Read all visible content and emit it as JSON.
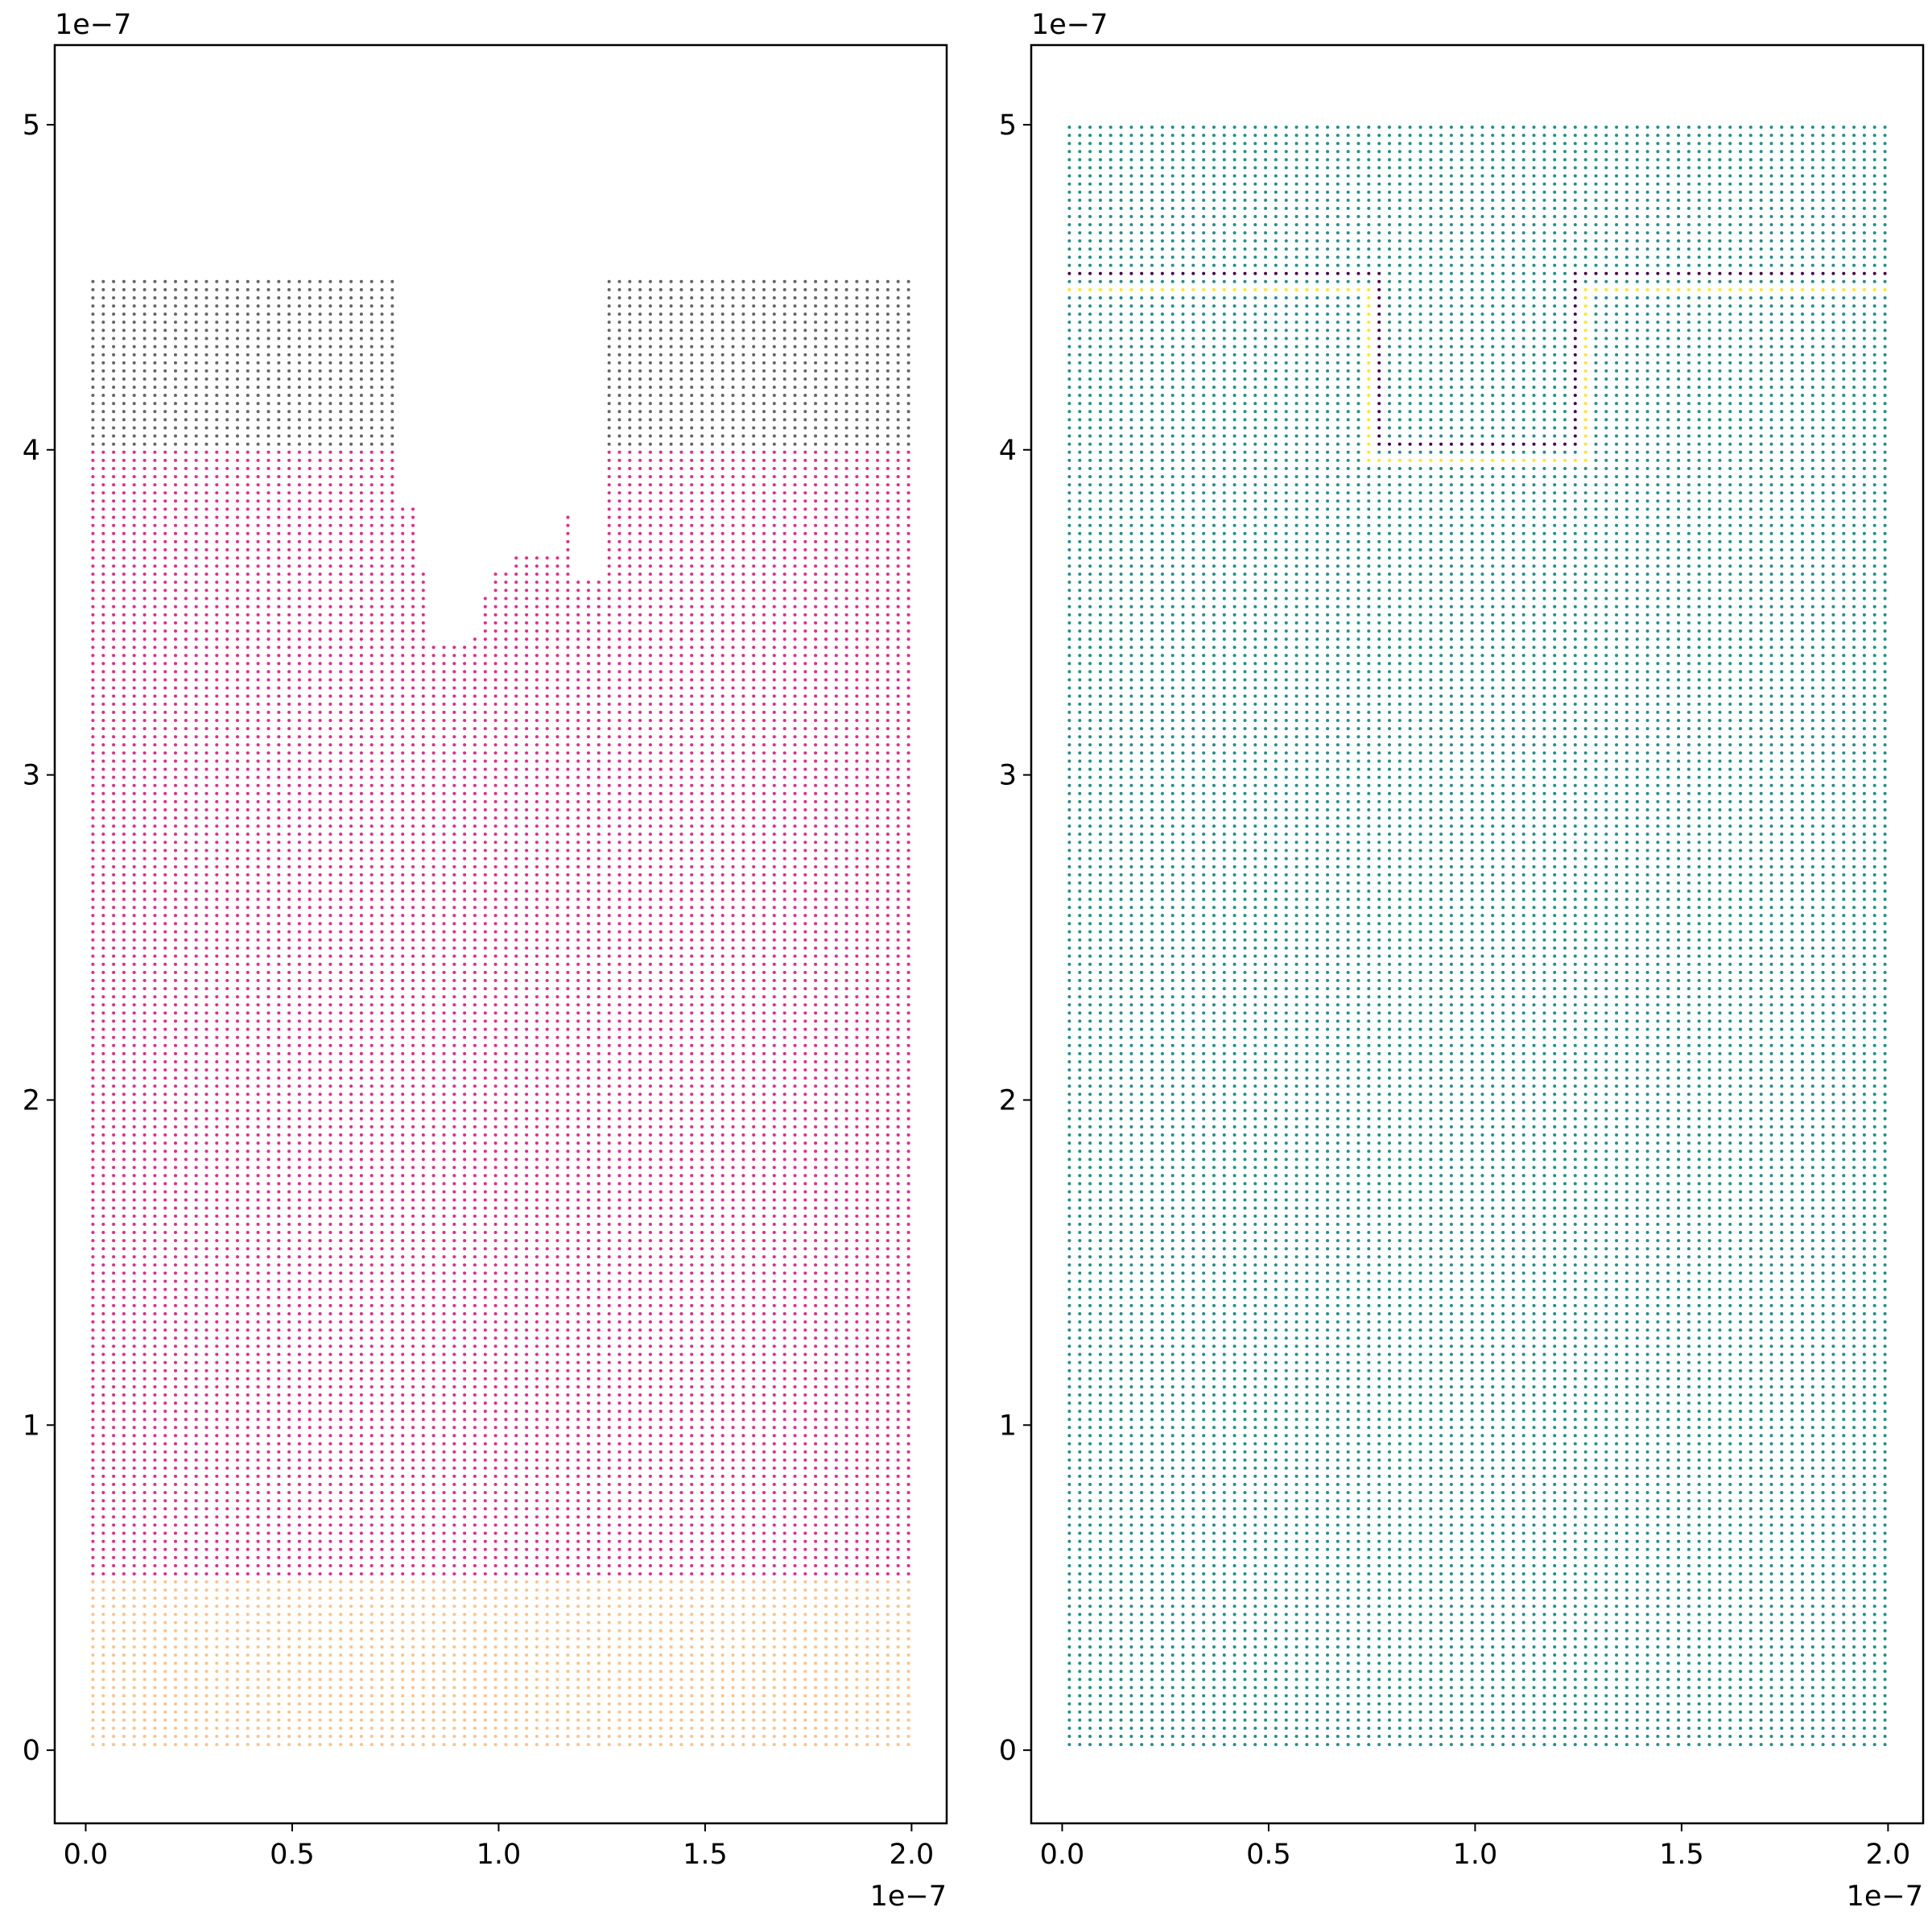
{
  "chart_data": [
    {
      "type": "scatter",
      "title": "",
      "xlabel": "",
      "ylabel": "",
      "xlim": [
        -7.5e-09,
        2.085e-07
      ],
      "ylim": [
        -2.25e-08,
        5.245e-07
      ],
      "x_offset_text": "1e−7",
      "y_offset_text": "1e−7",
      "x_ticks": [
        0.0,
        5e-08,
        1e-07,
        1.5e-07,
        2e-07
      ],
      "x_tick_labels": [
        "0.0",
        "0.5",
        "1.0",
        "1.5",
        "2.0"
      ],
      "y_ticks": [
        0,
        1e-07,
        2e-07,
        3e-07,
        4e-07,
        5e-07
      ],
      "y_tick_labels": [
        "0",
        "1",
        "2",
        "3",
        "4",
        "5"
      ],
      "grid": false,
      "marker_size_px": 3.6,
      "lattice": {
        "x_first": 1.75e-09,
        "x_step": 2.5e-09,
        "x_count": 80,
        "y_first": 1.75e-09,
        "y_step": 2.5e-09,
        "y_count": 200
      },
      "series": [
        {
          "color": "#fec287",
          "description": "bottom layer",
          "x_range": [
            1.75e-09,
            1.9925e-07
          ],
          "y_range": [
            1.75e-09,
            5.175e-08
          ]
        },
        {
          "color": "#e7298a",
          "description": "main layer with etched notch",
          "x_range": [
            1.75e-09,
            1.9925e-07
          ],
          "y_range": [
            5.425e-08,
            3.9925e-07
          ],
          "notch_x_range": [
            7.525e-08,
            1.2675e-07
          ],
          "notch_profile": [
            [
              7.675e-08,
              3.825e-07
            ],
            [
              8.175e-08,
              3.625e-07
            ],
            [
              8.425e-08,
              3.4e-07
            ],
            [
              9.175e-08,
              3.4e-07
            ],
            [
              9.425e-08,
              3.425e-07
            ],
            [
              9.675e-08,
              3.55e-07
            ],
            [
              1.0175e-07,
              3.625e-07
            ],
            [
              1.0425e-07,
              3.675e-07
            ],
            [
              1.1425e-07,
              3.675e-07
            ],
            [
              1.1675e-07,
              3.8e-07
            ],
            [
              1.1925e-07,
              3.6e-07
            ],
            [
              1.2425e-07,
              3.6e-07
            ]
          ]
        },
        {
          "color": "#666666",
          "description": "top mask layer",
          "x_ranges": [
            [
              1.75e-09,
              7.425e-08
            ],
            [
              1.2675e-07,
              1.9925e-07
            ]
          ],
          "y_range": [
            4.0175e-07,
            4.5175e-07
          ]
        }
      ]
    },
    {
      "type": "scatter",
      "title": "",
      "xlabel": "",
      "ylabel": "",
      "xlim": [
        -7.5e-09,
        2.085e-07
      ],
      "ylim": [
        -2.25e-08,
        5.245e-07
      ],
      "x_offset_text": "1e−7",
      "y_offset_text": "1e−7",
      "x_ticks": [
        0.0,
        5e-08,
        1e-07,
        1.5e-07,
        2e-07
      ],
      "x_tick_labels": [
        "0.0",
        "0.5",
        "1.0",
        "1.5",
        "2.0"
      ],
      "y_ticks": [
        0,
        1e-07,
        2e-07,
        3e-07,
        4e-07,
        5e-07
      ],
      "y_tick_labels": [
        "0",
        "1",
        "2",
        "3",
        "4",
        "5"
      ],
      "grid": false,
      "marker_size_px": 3.6,
      "lattice": {
        "x_first": 1.75e-09,
        "x_step": 2.5e-09,
        "x_count": 80,
        "y_first": 1.75e-09,
        "y_step": 2.5e-09,
        "y_count": 200
      },
      "series": [
        {
          "color": "#21918c",
          "description": "interior / background points",
          "x_range": [
            1.75e-09,
            1.9925e-07
          ],
          "y_range": [
            1.75e-09,
            4.9925e-07
          ]
        },
        {
          "color": "#fde725",
          "description": "outer boundary line",
          "path": [
            [
              1.75e-09,
              4.4925e-07
            ],
            [
              7.425e-08,
              4.4925e-07
            ],
            [
              7.425e-08,
              3.9675e-07
            ],
            [
              1.2675e-07,
              3.9675e-07
            ],
            [
              1.2675e-07,
              4.4925e-07
            ],
            [
              1.9925e-07,
              4.4925e-07
            ]
          ]
        },
        {
          "color": "#440154",
          "description": "inner boundary line",
          "path": [
            [
              1.75e-09,
              4.5425e-07
            ],
            [
              7.675e-08,
              4.5425e-07
            ],
            [
              7.675e-08,
              4.0175e-07
            ],
            [
              1.2425e-07,
              4.0175e-07
            ],
            [
              1.2425e-07,
              4.5425e-07
            ],
            [
              1.9925e-07,
              4.5425e-07
            ]
          ]
        }
      ]
    }
  ]
}
